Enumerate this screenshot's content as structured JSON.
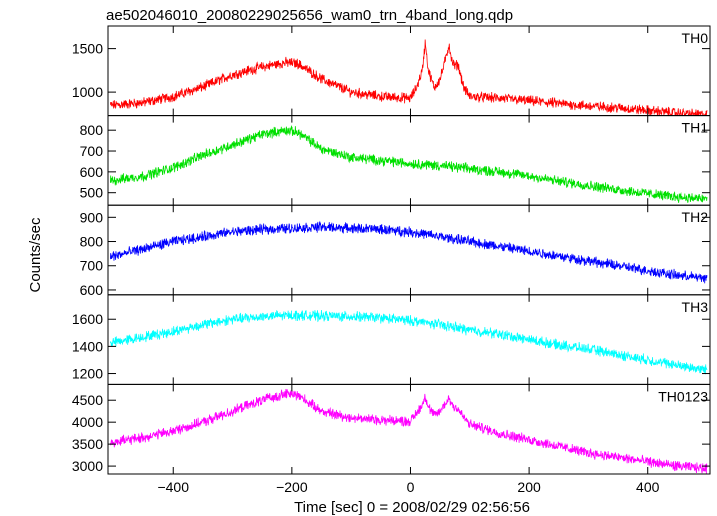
{
  "chart_data": {
    "type": "line",
    "title": "ae502046010_20080229025656_wam0_trn_4band_long.qdp",
    "xlabel": "Time [sec] 0 = 2008/02/29 02:56:56",
    "ylabel": "Counts/sec",
    "xlim": [
      -510,
      505
    ],
    "x_ticks": [
      -400,
      -200,
      0,
      200,
      400
    ],
    "grid": false,
    "panels": [
      {
        "name": "TH0",
        "color": "#ff0000",
        "ylim": [
          730,
          1760
        ],
        "y_ticks": [
          1000,
          1500
        ],
        "x": [
          -500,
          -450,
          -400,
          -350,
          -300,
          -250,
          -210,
          -190,
          -150,
          -100,
          -50,
          0,
          10,
          20,
          25,
          30,
          40,
          50,
          60,
          65,
          70,
          75,
          80,
          90,
          100,
          150,
          200,
          250,
          300,
          350,
          400,
          450,
          495
        ],
        "values": [
          850,
          880,
          950,
          1060,
          1200,
          1290,
          1340,
          1330,
          1150,
          1000,
          950,
          930,
          1050,
          1250,
          1580,
          1250,
          1050,
          1150,
          1400,
          1550,
          1350,
          1300,
          1320,
          1050,
          950,
          930,
          900,
          870,
          840,
          820,
          790,
          760,
          740
        ]
      },
      {
        "name": "TH1",
        "color": "#00e000",
        "ylim": [
          440,
          870
        ],
        "y_ticks": [
          500,
          600,
          700,
          800
        ],
        "x": [
          -500,
          -450,
          -400,
          -350,
          -300,
          -250,
          -210,
          -190,
          -150,
          -100,
          -50,
          0,
          50,
          100,
          150,
          200,
          250,
          300,
          350,
          400,
          450,
          495
        ],
        "values": [
          560,
          580,
          620,
          680,
          730,
          780,
          800,
          790,
          710,
          670,
          655,
          640,
          630,
          615,
          600,
          580,
          555,
          535,
          515,
          495,
          480,
          470
        ]
      },
      {
        "name": "TH2",
        "color": "#0000ff",
        "ylim": [
          580,
          950
        ],
        "y_ticks": [
          600,
          700,
          800,
          900
        ],
        "x": [
          -500,
          -450,
          -400,
          -350,
          -300,
          -250,
          -200,
          -150,
          -100,
          -50,
          0,
          50,
          100,
          150,
          200,
          250,
          300,
          350,
          400,
          450,
          495
        ],
        "values": [
          740,
          770,
          800,
          820,
          840,
          850,
          855,
          860,
          855,
          850,
          840,
          820,
          800,
          780,
          760,
          740,
          720,
          700,
          680,
          660,
          650
        ]
      },
      {
        "name": "TH3",
        "color": "#00ffff",
        "ylim": [
          1120,
          1780
        ],
        "y_ticks": [
          1200,
          1400,
          1600
        ],
        "x": [
          -500,
          -450,
          -400,
          -350,
          -300,
          -250,
          -200,
          -150,
          -100,
          -50,
          0,
          50,
          100,
          150,
          200,
          250,
          300,
          350,
          400,
          450,
          495
        ],
        "values": [
          1430,
          1470,
          1510,
          1560,
          1600,
          1620,
          1630,
          1625,
          1620,
          1610,
          1590,
          1560,
          1520,
          1490,
          1450,
          1410,
          1380,
          1340,
          1300,
          1260,
          1230
        ]
      },
      {
        "name": "TH0123",
        "color": "#ff00ff",
        "ylim": [
          2820,
          4860
        ],
        "y_ticks": [
          3000,
          3500,
          4000,
          4500
        ],
        "x": [
          -500,
          -450,
          -400,
          -350,
          -300,
          -250,
          -210,
          -190,
          -150,
          -100,
          -50,
          0,
          10,
          20,
          25,
          30,
          40,
          50,
          60,
          65,
          70,
          80,
          90,
          100,
          150,
          200,
          250,
          300,
          350,
          400,
          450,
          495
        ],
        "values": [
          3550,
          3650,
          3800,
          4000,
          4250,
          4500,
          4650,
          4620,
          4250,
          4100,
          4050,
          4020,
          4200,
          4400,
          4600,
          4350,
          4150,
          4250,
          4450,
          4550,
          4400,
          4300,
          4100,
          3950,
          3750,
          3600,
          3450,
          3300,
          3200,
          3100,
          3000,
          2950
        ]
      }
    ]
  }
}
